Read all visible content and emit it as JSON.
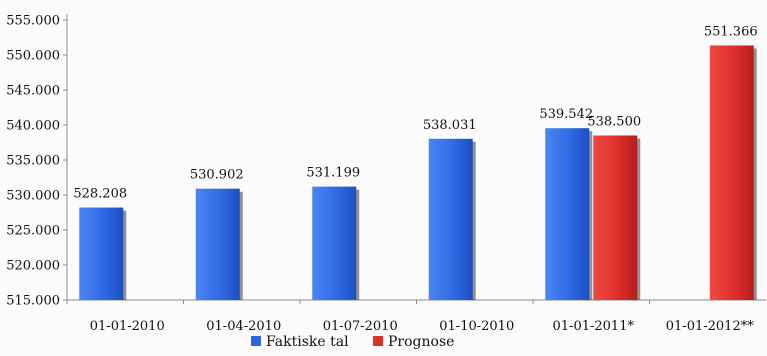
{
  "chart_data": {
    "type": "bar",
    "categories": [
      "01-01-2010",
      "01-04-2010",
      "01-07-2010",
      "01-10-2010",
      "01-01-2011*",
      "01-01-2012**"
    ],
    "series": [
      {
        "name": "Faktiske tal",
        "color": "#2a64e0",
        "values": [
          528208,
          530902,
          531199,
          538031,
          539542,
          null
        ],
        "labels": [
          "528.208",
          "530.902",
          "531.199",
          "538.031",
          "539.542",
          ""
        ]
      },
      {
        "name": "Prognose",
        "color": "#e0302e",
        "values": [
          null,
          null,
          null,
          null,
          538500,
          551366
        ],
        "labels": [
          "",
          "",
          "",
          "",
          "538.500",
          "551.366"
        ]
      }
    ],
    "yticks": [
      515000,
      520000,
      525000,
      530000,
      535000,
      540000,
      545000,
      550000,
      555000
    ],
    "ytick_labels": [
      "515.000",
      "520.000",
      "525.000",
      "530.000",
      "535.000",
      "540.000",
      "545.000",
      "550.000",
      "555.000"
    ],
    "ylim": [
      515000,
      555000
    ],
    "grid": false,
    "legend_position": "bottom"
  }
}
